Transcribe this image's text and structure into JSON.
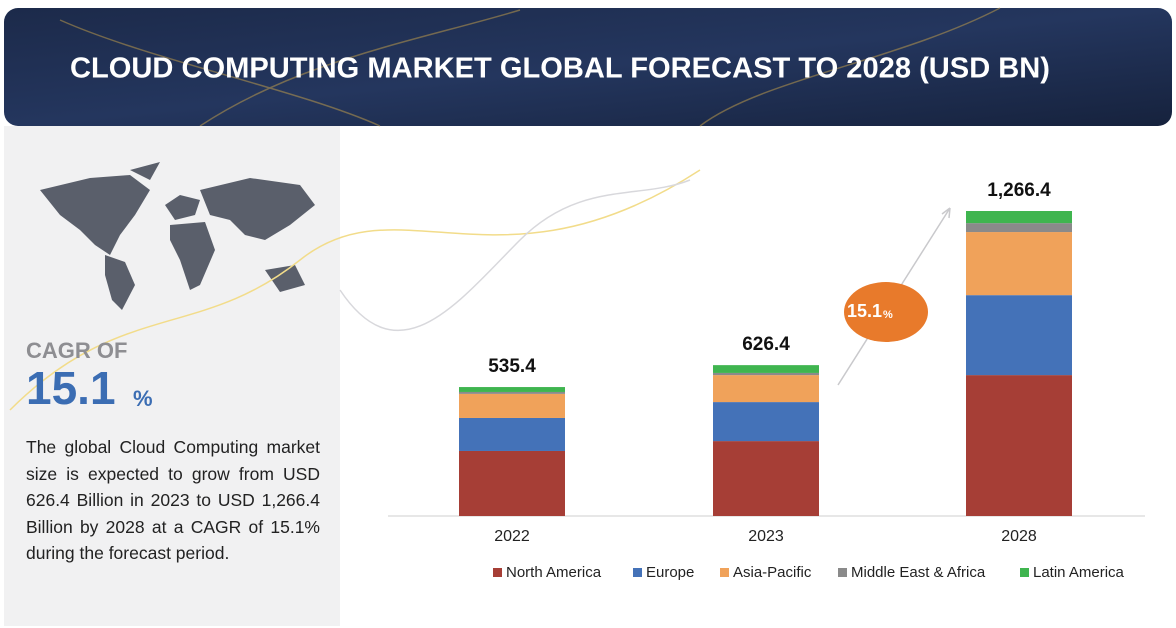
{
  "header": {
    "title": "CLOUD COMPUTING MARKET GLOBAL FORECAST TO 2028 (USD BN)"
  },
  "sidebar": {
    "cagr_label": "CAGR OF",
    "cagr_value": "15.1",
    "cagr_unit": "%",
    "description": "The global Cloud Computing market size is expected to grow from USD 626.4 Billion in 2023 to USD 1,266.4 Billion by 2028 at a CAGR of 15.1%  during the forecast period."
  },
  "chart_data": {
    "type": "stacked_bar",
    "categories": [
      "2022",
      "2023",
      "2028"
    ],
    "series": [
      {
        "name": "North America",
        "color": "#a63e36",
        "values": [
          270,
          311,
          585
        ]
      },
      {
        "name": "Europe",
        "color": "#4472b8",
        "values": [
          137,
          162,
          332
        ]
      },
      {
        "name": "Asia-Pacific",
        "color": "#f0a25a",
        "values": [
          100,
          112,
          262
        ]
      },
      {
        "name": "Middle East & Africa",
        "color": "#8a8a8a",
        "values": [
          8,
          9,
          37
        ]
      },
      {
        "name": "Latin America",
        "color": "#3fb54f",
        "values": [
          20.4,
          32.4,
          50.4
        ]
      }
    ],
    "totals": [
      535.4,
      626.4,
      1266.4
    ],
    "total_labels": [
      "535.4",
      "626.4",
      "1,266.4"
    ],
    "badge": {
      "value": "15.1",
      "unit": "%",
      "color": "#e87a2b"
    }
  }
}
